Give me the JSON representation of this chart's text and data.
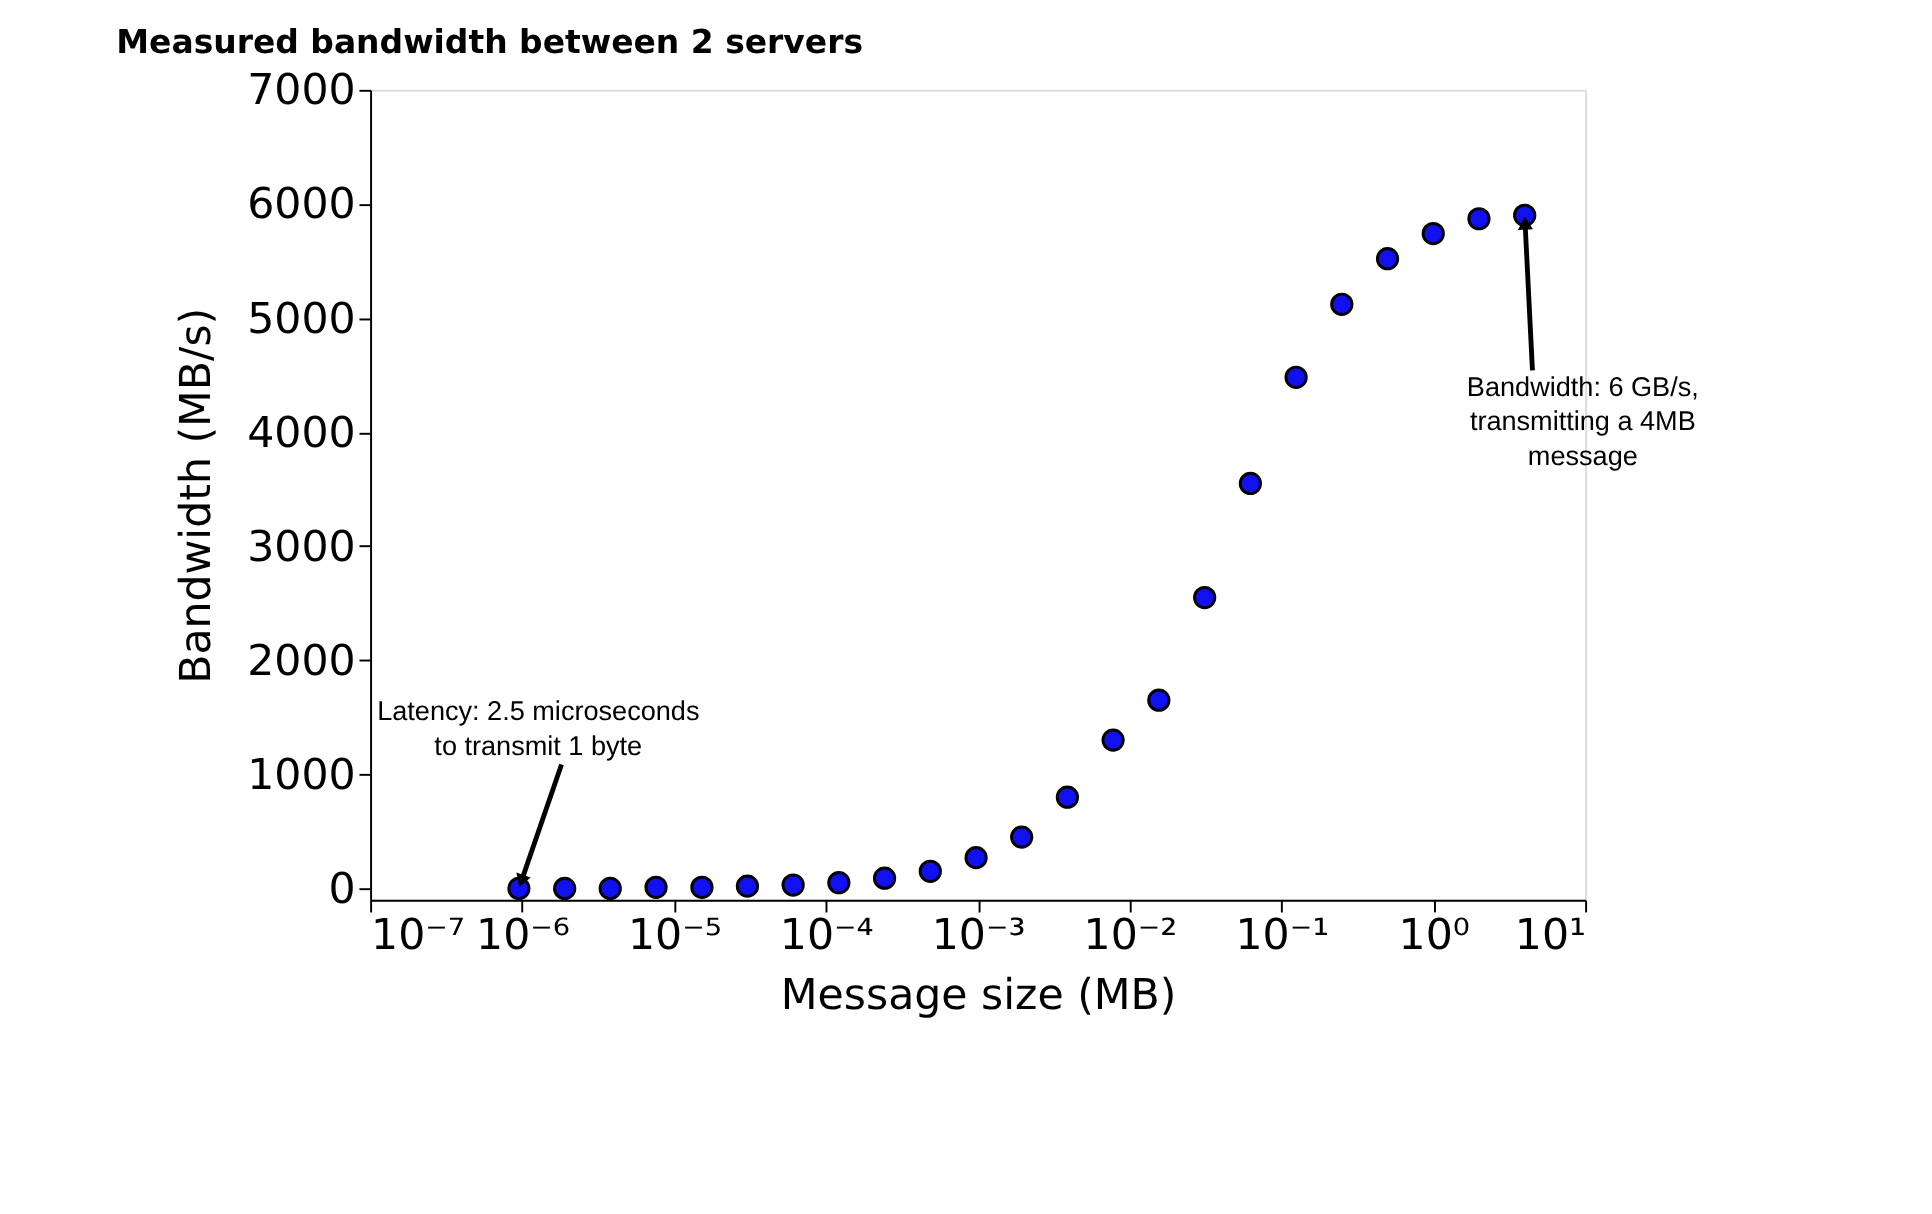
{
  "chart_data": {
    "type": "scatter",
    "title": "Measured bandwidth between 2 servers",
    "xlabel": "Message size (MB)",
    "ylabel": "Bandwidth (MB/s)",
    "x": [
      9.54e-07,
      1.91e-06,
      3.81e-06,
      7.63e-06,
      1.53e-05,
      3.05e-05,
      6.1e-05,
      0.000122,
      0.000244,
      0.000488,
      0.000977,
      0.00195,
      0.0039,
      0.0078,
      0.0156,
      0.03125,
      0.0625,
      0.125,
      0.25,
      0.5,
      1,
      2,
      4
    ],
    "series": [
      {
        "color": "#1010f0",
        "values": [
          0,
          0,
          0,
          10,
          10,
          20,
          30,
          50,
          90,
          150,
          270,
          450,
          800,
          1300,
          1650,
          2550,
          3550,
          4480,
          5120,
          5520,
          5740,
          5870,
          5900
        ]
      }
    ],
    "log": "x",
    "marker": "circle",
    "grid": false,
    "legend": false,
    "xlim": [
      1e-07,
      10
    ],
    "ylim": [
      -100,
      7000
    ],
    "xticks": [
      {
        "value": 1e-07,
        "label": "10⁻⁷"
      },
      {
        "value": 1e-06,
        "label": "10⁻⁶"
      },
      {
        "value": 1e-05,
        "label": "10⁻⁵"
      },
      {
        "value": 0.0001,
        "label": "10⁻⁴"
      },
      {
        "value": 0.001,
        "label": "10⁻³"
      },
      {
        "value": 0.01,
        "label": "10⁻²"
      },
      {
        "value": 0.1,
        "label": "10⁻¹"
      },
      {
        "value": 1,
        "label": "10⁰"
      },
      {
        "value": 10,
        "label": "10¹"
      }
    ],
    "yticks": [
      0,
      1000,
      2000,
      3000,
      4000,
      5000,
      6000,
      7000
    ],
    "annotations": [
      {
        "text": "Latency: 2.5 microseconds\nto transmit 1 byte",
        "x": 9.54e-07,
        "y": 0
      },
      {
        "text": "Bandwidth: 6 GB/s,\ntransmitting a 4MB\nmessage",
        "x": 4,
        "y": 5900
      }
    ]
  }
}
